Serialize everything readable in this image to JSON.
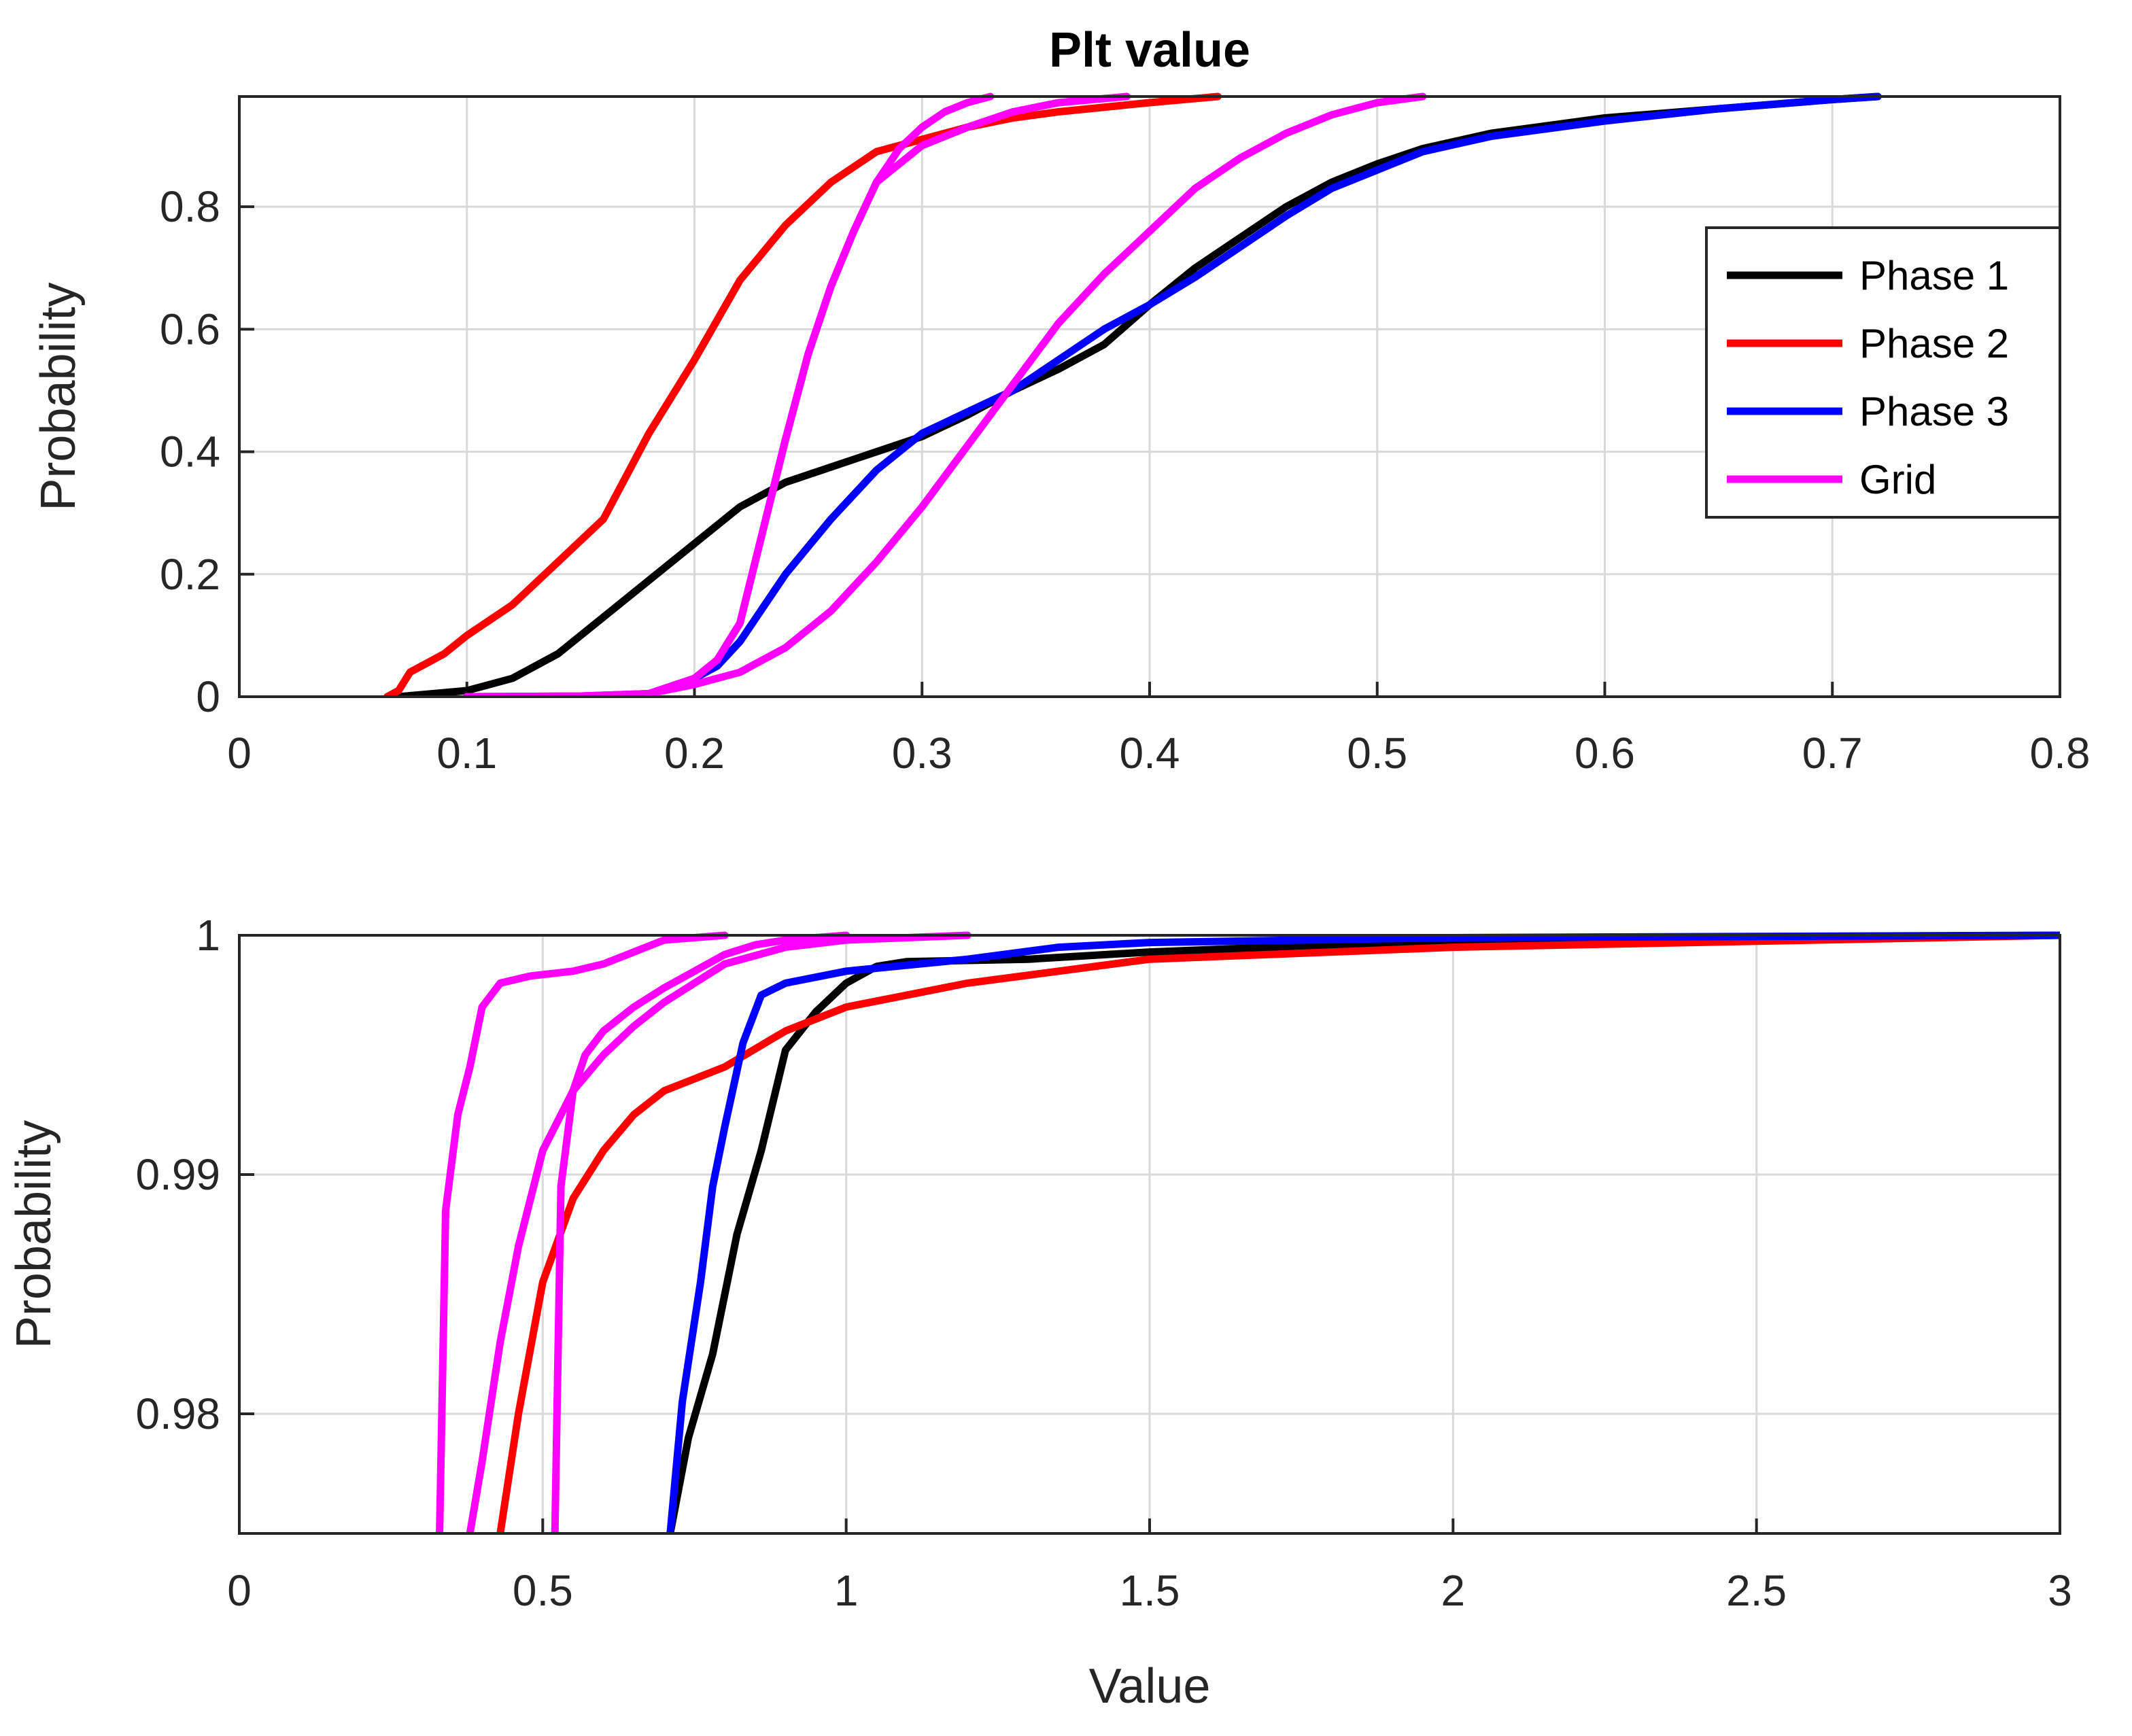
{
  "chart_data": [
    {
      "type": "line",
      "title": "Plt value",
      "xlabel": "",
      "ylabel": "Probability",
      "xlim": [
        0,
        0.8
      ],
      "ylim": [
        0,
        0.98
      ],
      "grid": true,
      "legend_position": "right-center",
      "xticks": [
        0,
        0.1,
        0.2,
        0.3,
        0.4,
        0.5,
        0.6,
        0.7,
        0.8
      ],
      "xtick_labels": [
        "0",
        "0.1",
        "0.2",
        "0.3",
        "0.4",
        "0.5",
        "0.6",
        "0.7",
        "0.8"
      ],
      "yticks": [
        0,
        0.2,
        0.4,
        0.6,
        0.8
      ],
      "ytick_labels": [
        "0",
        "0.2",
        "0.4",
        "0.6",
        "0.8"
      ],
      "series": [
        {
          "name": "Phase 1",
          "color": "#000000",
          "x": [
            0.07,
            0.1,
            0.12,
            0.14,
            0.16,
            0.18,
            0.2,
            0.22,
            0.24,
            0.26,
            0.28,
            0.3,
            0.32,
            0.34,
            0.36,
            0.38,
            0.4,
            0.42,
            0.44,
            0.46,
            0.48,
            0.5,
            0.52,
            0.55,
            0.6,
            0.65,
            0.7,
            0.72
          ],
          "y": [
            0.0,
            0.01,
            0.03,
            0.07,
            0.13,
            0.19,
            0.25,
            0.31,
            0.35,
            0.375,
            0.4,
            0.425,
            0.46,
            0.5,
            0.535,
            0.575,
            0.64,
            0.7,
            0.75,
            0.8,
            0.84,
            0.87,
            0.895,
            0.92,
            0.945,
            0.96,
            0.975,
            0.98
          ]
        },
        {
          "name": "Phase 2",
          "color": "#ff0000",
          "x": [
            0.065,
            0.07,
            0.075,
            0.08,
            0.09,
            0.1,
            0.12,
            0.14,
            0.16,
            0.17,
            0.18,
            0.2,
            0.22,
            0.24,
            0.26,
            0.28,
            0.3,
            0.32,
            0.34,
            0.36,
            0.4,
            0.43
          ],
          "y": [
            0.0,
            0.01,
            0.04,
            0.05,
            0.07,
            0.1,
            0.15,
            0.22,
            0.29,
            0.36,
            0.43,
            0.55,
            0.68,
            0.77,
            0.84,
            0.89,
            0.91,
            0.93,
            0.945,
            0.955,
            0.97,
            0.98
          ]
        },
        {
          "name": "Phase 3",
          "color": "#0000ff",
          "x": [
            0.2,
            0.21,
            0.22,
            0.24,
            0.26,
            0.28,
            0.3,
            0.32,
            0.34,
            0.36,
            0.38,
            0.4,
            0.42,
            0.44,
            0.46,
            0.48,
            0.5,
            0.52,
            0.55,
            0.6,
            0.65,
            0.7,
            0.72
          ],
          "y": [
            0.03,
            0.05,
            0.09,
            0.2,
            0.29,
            0.37,
            0.43,
            0.465,
            0.5,
            0.55,
            0.6,
            0.64,
            0.685,
            0.735,
            0.785,
            0.83,
            0.86,
            0.89,
            0.915,
            0.94,
            0.96,
            0.975,
            0.98
          ]
        },
        {
          "name": "Grid",
          "color": "#ff00ff",
          "x": [
            0.1,
            0.15,
            0.18,
            0.2,
            0.21,
            0.22,
            0.23,
            0.24,
            0.25,
            0.26,
            0.27,
            0.28,
            0.29,
            0.3,
            0.31,
            0.32,
            0.33
          ],
          "y": [
            0.0,
            0.001,
            0.005,
            0.03,
            0.06,
            0.12,
            0.27,
            0.42,
            0.56,
            0.67,
            0.76,
            0.84,
            0.895,
            0.93,
            0.955,
            0.97,
            0.98
          ]
        },
        {
          "name": "Grid",
          "color": "#ff00ff",
          "x": [
            0.1,
            0.15,
            0.18,
            0.2,
            0.22,
            0.24,
            0.26,
            0.28,
            0.3,
            0.32,
            0.34,
            0.36,
            0.38,
            0.4,
            0.42,
            0.44,
            0.46,
            0.48,
            0.5,
            0.52
          ],
          "y": [
            0.0,
            0.001,
            0.005,
            0.02,
            0.04,
            0.08,
            0.14,
            0.22,
            0.31,
            0.41,
            0.51,
            0.61,
            0.69,
            0.76,
            0.83,
            0.88,
            0.92,
            0.95,
            0.97,
            0.98
          ]
        },
        {
          "name": "Grid",
          "color": "#ff00ff",
          "x": [
            0.1,
            0.15,
            0.18,
            0.2,
            0.21,
            0.22,
            0.23,
            0.24,
            0.25,
            0.26,
            0.27,
            0.28,
            0.3,
            0.32,
            0.34,
            0.36,
            0.39
          ],
          "y": [
            0.0,
            0.001,
            0.005,
            0.03,
            0.06,
            0.12,
            0.27,
            0.42,
            0.56,
            0.67,
            0.76,
            0.84,
            0.9,
            0.93,
            0.955,
            0.97,
            0.98
          ]
        }
      ]
    },
    {
      "type": "line",
      "title": "",
      "xlabel": "Value",
      "ylabel": "Probability",
      "xlim": [
        0,
        3
      ],
      "ylim": [
        0.975,
        1.0
      ],
      "grid": true,
      "xticks": [
        0,
        0.5,
        1,
        1.5,
        2,
        2.5,
        3
      ],
      "xtick_labels": [
        "0",
        "0.5",
        "1",
        "1.5",
        "2",
        "2.5",
        "3"
      ],
      "yticks": [
        0.98,
        0.99,
        1.0
      ],
      "ytick_labels": [
        "0.98",
        "0.99",
        "1"
      ],
      "series": [
        {
          "name": "Phase 1",
          "color": "#000000",
          "x": [
            0.71,
            0.74,
            0.78,
            0.82,
            0.86,
            0.9,
            0.95,
            1.0,
            1.05,
            1.1,
            1.3,
            1.5,
            1.7,
            2.0,
            2.5,
            3.0
          ],
          "y": [
            0.975,
            0.979,
            0.9825,
            0.9875,
            0.991,
            0.9952,
            0.9968,
            0.998,
            0.9987,
            0.9989,
            0.999,
            0.9993,
            0.9995,
            0.9997,
            0.9999,
            1.0
          ]
        },
        {
          "name": "Phase 2",
          "color": "#ff0000",
          "x": [
            0.43,
            0.46,
            0.5,
            0.55,
            0.6,
            0.65,
            0.7,
            0.8,
            0.9,
            1.0,
            1.2,
            1.5,
            2.0,
            2.6,
            3.0
          ],
          "y": [
            0.975,
            0.98,
            0.9855,
            0.989,
            0.991,
            0.9925,
            0.9935,
            0.9945,
            0.996,
            0.997,
            0.998,
            0.999,
            0.9995,
            0.9998,
            1.0
          ]
        },
        {
          "name": "Phase 3",
          "color": "#0000ff",
          "x": [
            0.71,
            0.73,
            0.76,
            0.78,
            0.8,
            0.83,
            0.86,
            0.9,
            1.0,
            1.2,
            1.35,
            1.5,
            2.0,
            3.0
          ],
          "y": [
            0.975,
            0.9805,
            0.9855,
            0.9895,
            0.992,
            0.9955,
            0.9975,
            0.998,
            0.9985,
            0.999,
            0.9995,
            0.9997,
            0.9999,
            1.0
          ]
        },
        {
          "name": "Grid",
          "color": "#ff00ff",
          "x": [
            0.33,
            0.34,
            0.36,
            0.38,
            0.4,
            0.43,
            0.48,
            0.55,
            0.6,
            0.65,
            0.7,
            0.75,
            0.8
          ],
          "y": [
            0.975,
            0.9885,
            0.9925,
            0.9945,
            0.997,
            0.998,
            0.9983,
            0.9985,
            0.9988,
            0.9993,
            0.9998,
            0.9999,
            1.0
          ]
        },
        {
          "name": "Grid",
          "color": "#ff00ff",
          "x": [
            0.38,
            0.4,
            0.43,
            0.46,
            0.5,
            0.55,
            0.6,
            0.65,
            0.7,
            0.75,
            0.8,
            0.9,
            1.0,
            1.2
          ],
          "y": [
            0.975,
            0.978,
            0.983,
            0.987,
            0.991,
            0.9935,
            0.995,
            0.9962,
            0.9972,
            0.998,
            0.9988,
            0.9995,
            0.9998,
            1.0
          ]
        },
        {
          "name": "Grid",
          "color": "#ff00ff",
          "x": [
            0.52,
            0.53,
            0.55,
            0.57,
            0.6,
            0.65,
            0.7,
            0.75,
            0.8,
            0.85,
            0.9,
            1.0
          ],
          "y": [
            0.975,
            0.9895,
            0.9935,
            0.995,
            0.996,
            0.997,
            0.9978,
            0.9985,
            0.9992,
            0.9996,
            0.9998,
            1.0
          ]
        }
      ]
    }
  ],
  "legend": {
    "items": [
      {
        "label": "Phase 1",
        "color": "#000000"
      },
      {
        "label": "Phase 2",
        "color": "#ff0000"
      },
      {
        "label": "Phase 3",
        "color": "#0000ff"
      },
      {
        "label": "Grid",
        "color": "#ff00ff"
      }
    ]
  }
}
